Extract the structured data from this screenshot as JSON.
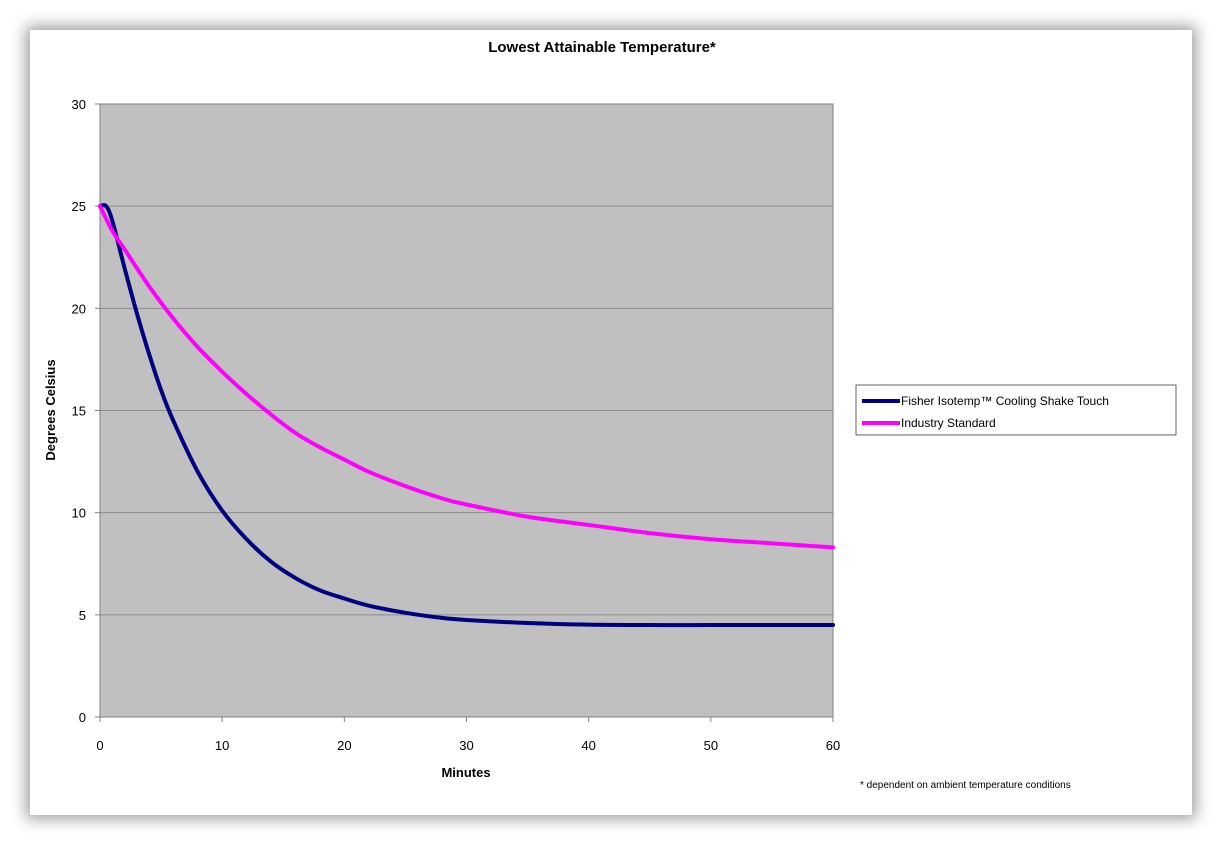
{
  "chart_data": {
    "type": "line",
    "title": "Lowest Attainable Temperature*",
    "xlabel": "Minutes",
    "ylabel": "Degrees Celsius",
    "xlim": [
      0,
      60
    ],
    "ylim": [
      0,
      30
    ],
    "x_ticks": [
      "0",
      "10",
      "20",
      "30",
      "40",
      "50",
      "60"
    ],
    "y_ticks": [
      "0",
      "5",
      "10",
      "15",
      "20",
      "25",
      "30"
    ],
    "grid": "horizontal",
    "legend_position": "right",
    "plot_background": "#c0c0c0",
    "series": [
      {
        "name": "Fisher Isotemp™ Cooling Shake Touch",
        "color": "#000080",
        "x": [
          0,
          0.5,
          1,
          2,
          3,
          4,
          5,
          6,
          8,
          10,
          12,
          14,
          16,
          18,
          20,
          22,
          25,
          28,
          30,
          35,
          40,
          45,
          50,
          55,
          60
        ],
        "y": [
          25,
          25.0,
          24.3,
          22.0,
          19.8,
          17.8,
          16.0,
          14.5,
          12.0,
          10.1,
          8.7,
          7.6,
          6.8,
          6.2,
          5.8,
          5.45,
          5.1,
          4.85,
          4.75,
          4.6,
          4.52,
          4.5,
          4.5,
          4.5,
          4.5
        ]
      },
      {
        "name": "Industry Standard",
        "color": "#ff00ff",
        "x": [
          0,
          1,
          2,
          4,
          6,
          8,
          10,
          12,
          14,
          16,
          18,
          20,
          22,
          25,
          28,
          30,
          35,
          40,
          45,
          50,
          55,
          60
        ],
        "y": [
          25,
          23.8,
          22.9,
          21.1,
          19.5,
          18.1,
          16.9,
          15.8,
          14.8,
          13.9,
          13.2,
          12.6,
          12.0,
          11.3,
          10.7,
          10.4,
          9.8,
          9.4,
          9.0,
          8.7,
          8.5,
          8.3
        ]
      }
    ],
    "footnote": "* dependent on ambient temperature conditions"
  }
}
